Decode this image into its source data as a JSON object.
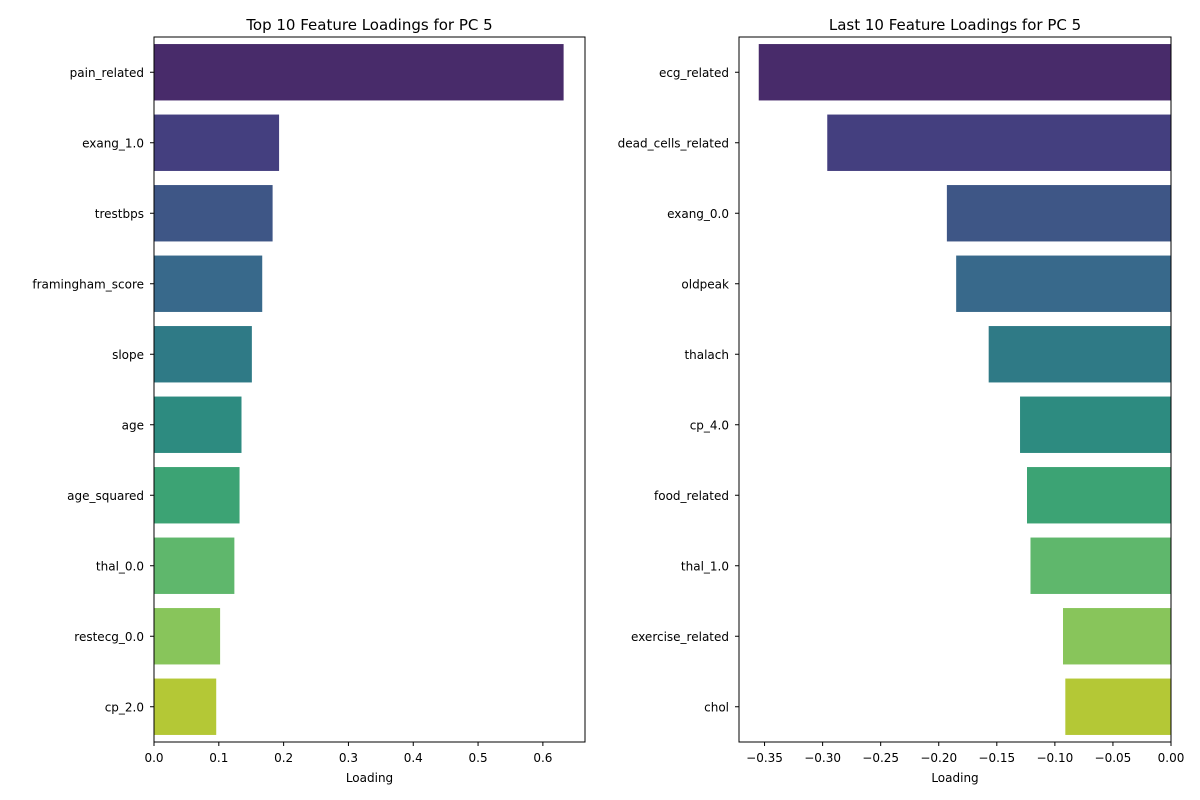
{
  "chart_data": [
    {
      "type": "bar",
      "orientation": "horizontal",
      "title": "Top 10 Feature Loadings for PC 5",
      "xlabel": "Loading",
      "ylabel": "",
      "xlim": [
        0,
        0.665
      ],
      "xticks": [
        0.0,
        0.1,
        0.2,
        0.3,
        0.4,
        0.5,
        0.6
      ],
      "xtick_labels": [
        "0.0",
        "0.1",
        "0.2",
        "0.3",
        "0.4",
        "0.5",
        "0.6"
      ],
      "grid": false,
      "categories": [
        "pain_related",
        "exang_1.0",
        "trestbps",
        "framingham_score",
        "slope",
        "age",
        "age_squared",
        "thal_0.0",
        "restecg_0.0",
        "cp_2.0"
      ],
      "values": [
        0.632,
        0.193,
        0.183,
        0.167,
        0.151,
        0.135,
        0.132,
        0.124,
        0.102,
        0.096
      ],
      "colors": [
        "#482b6a",
        "#443f7f",
        "#3e5686",
        "#38698b",
        "#2f7a86",
        "#2d8b80",
        "#3ca374",
        "#5fb76c",
        "#88c55b",
        "#b4c836"
      ]
    },
    {
      "type": "bar",
      "orientation": "horizontal",
      "title": "Last 10 Feature Loadings for PC 5",
      "xlabel": "Loading",
      "ylabel": "",
      "xlim": [
        -0.372,
        0.0
      ],
      "xticks": [
        -0.35,
        -0.3,
        -0.25,
        -0.2,
        -0.15,
        -0.1,
        -0.05,
        0.0
      ],
      "xtick_labels": [
        "−0.35",
        "−0.30",
        "−0.25",
        "−0.20",
        "−0.15",
        "−0.10",
        "−0.05",
        "0.00"
      ],
      "grid": false,
      "categories": [
        "ecg_related",
        "dead_cells_related",
        "exang_0.0",
        "oldpeak",
        "thalach",
        "cp_4.0",
        "food_related",
        "thal_1.0",
        "exercise_related",
        "chol"
      ],
      "values": [
        -0.355,
        -0.296,
        -0.193,
        -0.185,
        -0.157,
        -0.13,
        -0.124,
        -0.121,
        -0.093,
        -0.091
      ],
      "colors": [
        "#482b6a",
        "#443f7f",
        "#3e5686",
        "#38698b",
        "#2f7a86",
        "#2d8b80",
        "#3ca374",
        "#5fb76c",
        "#88c55b",
        "#b4c836"
      ]
    }
  ]
}
